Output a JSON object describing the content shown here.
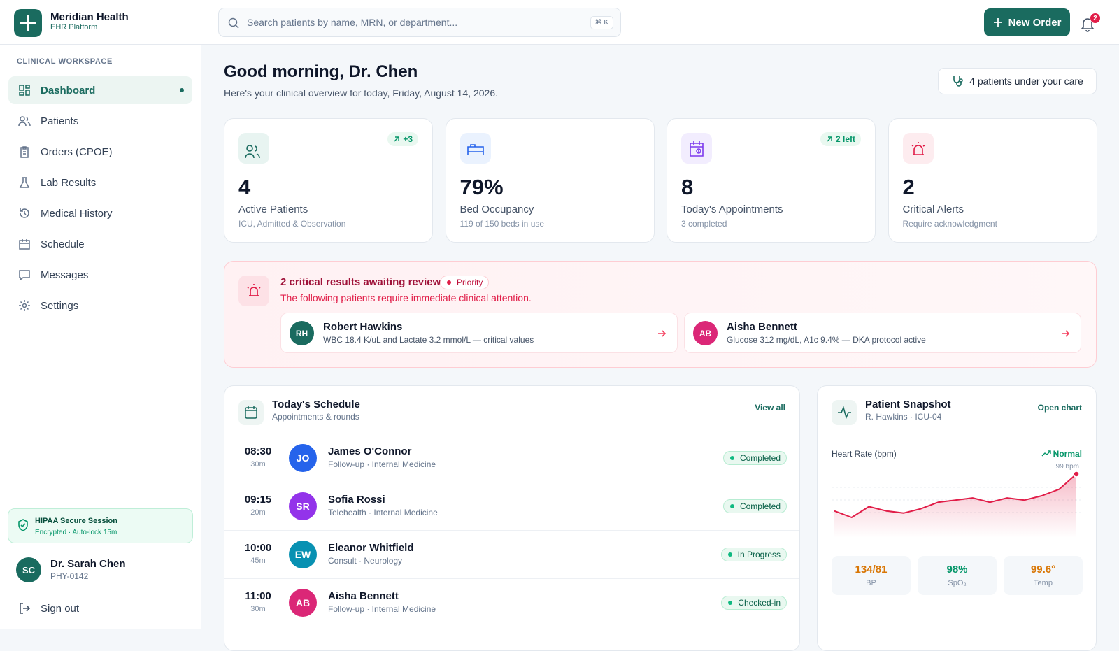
{
  "brand": {
    "name": "Meridian Health",
    "subtitle": "EHR Platform"
  },
  "search": {
    "placeholder": "Search patients by name, MRN, or department...",
    "shortcut": "⌘ K"
  },
  "header": {
    "new_order": "New Order",
    "notifications": 2
  },
  "sidebar": {
    "section": "CLINICAL WORKSPACE",
    "nav": [
      "Dashboard",
      "Patients",
      "Orders (CPOE)",
      "Lab Results",
      "Medical History",
      "Schedule",
      "Messages",
      "Settings"
    ],
    "session": {
      "title": "HIPAA Secure Session",
      "detail": "Encrypted · Auto-lock 15m"
    },
    "user": {
      "initials": "SC",
      "name": "Dr. Sarah Chen",
      "id": "PHY-0142"
    },
    "sign_out": "Sign out"
  },
  "greeting": {
    "title": "Good morning, Dr. Chen",
    "subtitle": "Here's your clinical overview for today, Friday, August 14, 2026.",
    "care_badge": "4 patients under your care"
  },
  "stats": [
    {
      "value": "4",
      "label": "Active Patients",
      "detail": "ICU, Admitted & Observation",
      "trend": "+3",
      "color": "#1a6b5f",
      "bg": "#e8f4f1"
    },
    {
      "value": "79%",
      "label": "Bed Occupancy",
      "detail": "119 of 150 beds in use",
      "color": "#2563eb",
      "bg": "#eaf2fe"
    },
    {
      "value": "8",
      "label": "Today's Appointments",
      "detail": "3 completed",
      "trend": "2 left",
      "color": "#7c3aed",
      "bg": "#f2edfe"
    },
    {
      "value": "2",
      "label": "Critical Alerts",
      "detail": "Require acknowledgment",
      "color": "#e11d48",
      "bg": "#fdecef"
    }
  ],
  "alert": {
    "title": "2 critical results awaiting review",
    "priority": "Priority",
    "message": "The following patients require immediate clinical attention.",
    "patients": [
      {
        "initials": "RH",
        "name": "Robert Hawkins",
        "detail": "WBC 18.4 K/uL and Lactate 3.2 mmol/L — critical values",
        "color": "#1a6b5f"
      },
      {
        "initials": "AB",
        "name": "Aisha Bennett",
        "detail": "Glucose 312 mg/dL, A1c 9.4% — DKA protocol active",
        "color": "#db2777"
      }
    ]
  },
  "schedule": {
    "title": "Today's Schedule",
    "subtitle": "Appointments & rounds",
    "view_all": "View all",
    "rows": [
      {
        "time": "08:30",
        "duration": "30m",
        "initials": "JO",
        "name": "James O'Connor",
        "detail": "Follow-up · Internal Medicine",
        "status": "Completed",
        "color": "#2563eb"
      },
      {
        "time": "09:15",
        "duration": "20m",
        "initials": "SR",
        "name": "Sofia Rossi",
        "detail": "Telehealth · Internal Medicine",
        "status": "Completed",
        "color": "#9333ea"
      },
      {
        "time": "10:00",
        "duration": "45m",
        "initials": "EW",
        "name": "Eleanor Whitfield",
        "detail": "Consult · Neurology",
        "status": "In Progress",
        "color": "#0891b2"
      },
      {
        "time": "11:00",
        "duration": "30m",
        "initials": "AB",
        "name": "Aisha Bennett",
        "detail": "Follow-up · Internal Medicine",
        "status": "Checked-in",
        "color": "#db2777"
      }
    ]
  },
  "snapshot": {
    "title": "Patient Snapshot",
    "subtitle": "R. Hawkins · ICU-04",
    "open_chart": "Open chart",
    "chart": {
      "type": "line",
      "title": "Heart Rate (bpm)",
      "trend": "Normal",
      "color": "#e11d48",
      "values": [
        82,
        79,
        84,
        82,
        81,
        83,
        86,
        87,
        88,
        86,
        88,
        87,
        89,
        92,
        99
      ],
      "value_labels": [
        null,
        null,
        null,
        null,
        null,
        null,
        null,
        null,
        null,
        null,
        null,
        null,
        null,
        null,
        "99 bpm"
      ]
    },
    "vitals": [
      {
        "value": "134/81",
        "label": "BP",
        "color": "#d97706"
      },
      {
        "value": "98%",
        "label": "SpO₂",
        "color": "#059669"
      },
      {
        "value": "99.6°",
        "label": "Temp",
        "color": "#d97706"
      }
    ]
  }
}
